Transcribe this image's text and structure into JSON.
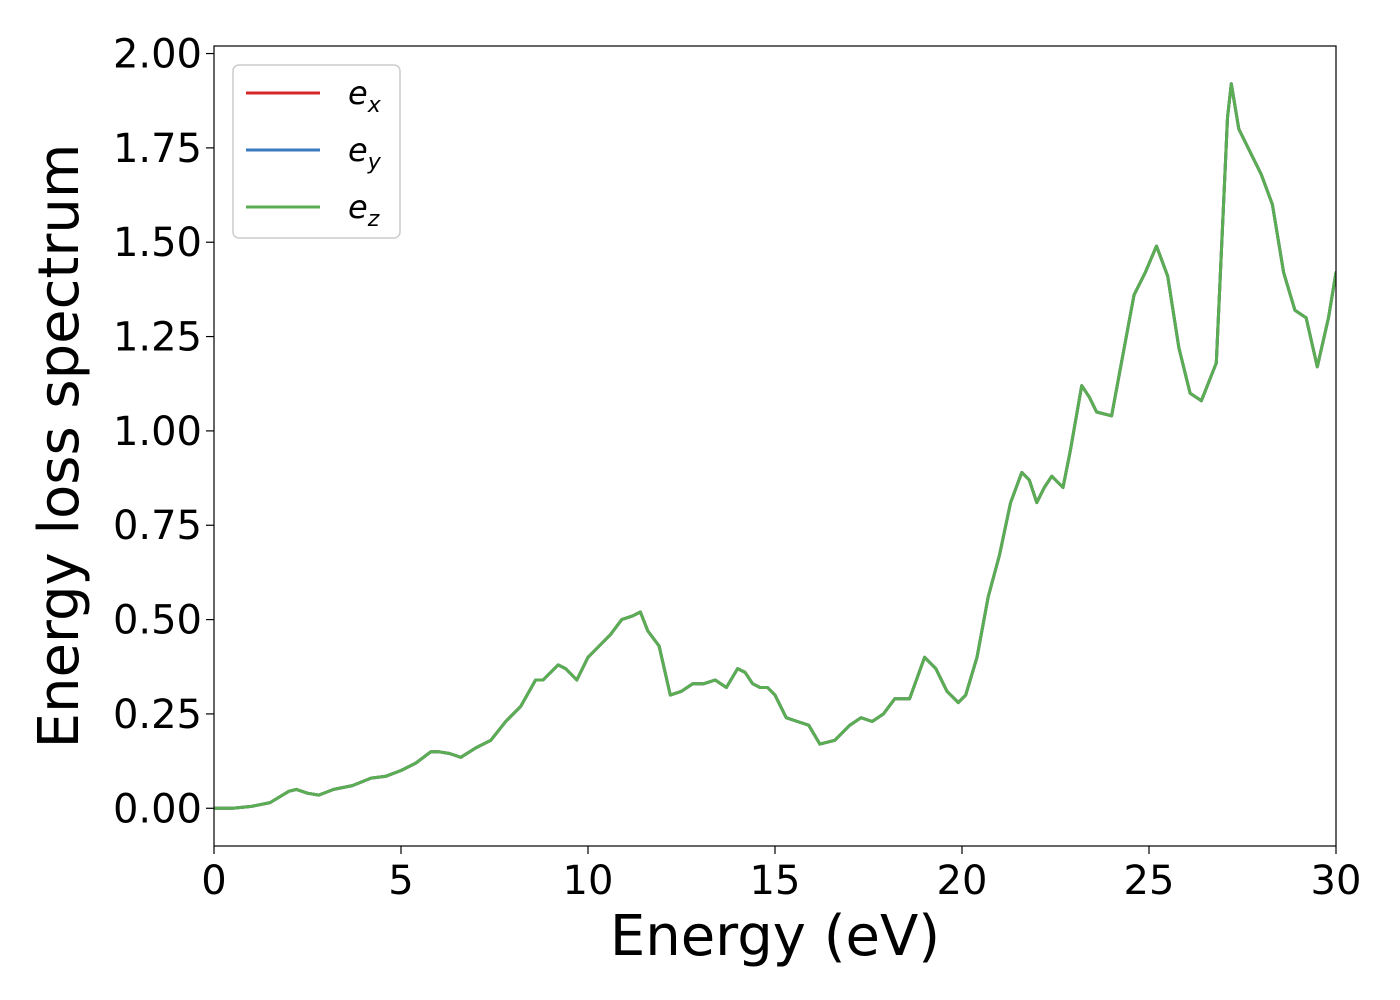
{
  "chart_data": {
    "type": "line",
    "title": "",
    "xlabel": "Energy (eV)",
    "ylabel": "Energy loss spectrum",
    "xlim": [
      0,
      30
    ],
    "ylim": [
      -0.1,
      2.02
    ],
    "xticks": [
      0,
      5,
      10,
      15,
      20,
      25,
      30
    ],
    "xtick_labels": [
      "0",
      "5",
      "10",
      "15",
      "20",
      "25",
      "30"
    ],
    "yticks": [
      0,
      0.25,
      0.5,
      0.75,
      1.0,
      1.25,
      1.5,
      1.75,
      2.0
    ],
    "ytick_labels": [
      "0.00",
      "0.25",
      "0.50",
      "0.75",
      "1.00",
      "1.25",
      "1.50",
      "1.75",
      "2.00"
    ],
    "grid": false,
    "legend_position": "top-left",
    "x": [
      0,
      0.5,
      1.0,
      1.5,
      2.0,
      2.2,
      2.5,
      2.8,
      3.2,
      3.7,
      4.2,
      4.6,
      5.0,
      5.4,
      5.8,
      6.0,
      6.3,
      6.6,
      7.0,
      7.4,
      7.8,
      8.2,
      8.6,
      8.8,
      9.0,
      9.2,
      9.4,
      9.7,
      10.0,
      10.3,
      10.6,
      10.9,
      11.2,
      11.4,
      11.6,
      11.9,
      12.2,
      12.5,
      12.8,
      13.1,
      13.4,
      13.7,
      14.0,
      14.2,
      14.4,
      14.6,
      14.8,
      15.0,
      15.3,
      15.6,
      15.9,
      16.2,
      16.6,
      17.0,
      17.3,
      17.6,
      17.9,
      18.2,
      18.6,
      19.0,
      19.3,
      19.6,
      19.9,
      20.1,
      20.4,
      20.7,
      21.0,
      21.3,
      21.6,
      21.8,
      22.0,
      22.2,
      22.4,
      22.7,
      22.9,
      23.2,
      23.4,
      23.6,
      24.0,
      24.3,
      24.6,
      24.9,
      25.2,
      25.5,
      25.8,
      26.1,
      26.4,
      26.8,
      27.1,
      27.2,
      27.4,
      27.7,
      28.0,
      28.3,
      28.6,
      28.9,
      29.2,
      29.5,
      29.8,
      30.0
    ],
    "series": [
      {
        "name": "e_x",
        "color": "#d62728",
        "values": [
          0.0,
          0.0,
          0.005,
          0.015,
          0.045,
          0.05,
          0.04,
          0.035,
          0.05,
          0.06,
          0.08,
          0.085,
          0.1,
          0.12,
          0.15,
          0.15,
          0.145,
          0.135,
          0.16,
          0.18,
          0.23,
          0.27,
          0.34,
          0.34,
          0.36,
          0.38,
          0.37,
          0.34,
          0.4,
          0.43,
          0.46,
          0.5,
          0.51,
          0.52,
          0.47,
          0.43,
          0.3,
          0.31,
          0.33,
          0.33,
          0.34,
          0.32,
          0.37,
          0.36,
          0.33,
          0.32,
          0.32,
          0.3,
          0.24,
          0.23,
          0.22,
          0.17,
          0.18,
          0.22,
          0.24,
          0.23,
          0.25,
          0.29,
          0.29,
          0.4,
          0.37,
          0.31,
          0.28,
          0.3,
          0.4,
          0.56,
          0.67,
          0.81,
          0.89,
          0.87,
          0.81,
          0.85,
          0.88,
          0.85,
          0.95,
          1.12,
          1.09,
          1.05,
          1.04,
          1.2,
          1.36,
          1.42,
          1.49,
          1.41,
          1.22,
          1.1,
          1.08,
          1.18,
          1.83,
          1.92,
          1.8,
          1.74,
          1.68,
          1.6,
          1.42,
          1.32,
          1.3,
          1.17,
          1.3,
          1.42
        ]
      },
      {
        "name": "e_y",
        "color": "#3a7bc0",
        "values": [
          0.0,
          0.0,
          0.005,
          0.015,
          0.045,
          0.05,
          0.04,
          0.035,
          0.05,
          0.06,
          0.08,
          0.085,
          0.1,
          0.12,
          0.15,
          0.15,
          0.145,
          0.135,
          0.16,
          0.18,
          0.23,
          0.27,
          0.34,
          0.34,
          0.36,
          0.38,
          0.37,
          0.34,
          0.4,
          0.43,
          0.46,
          0.5,
          0.51,
          0.52,
          0.47,
          0.43,
          0.3,
          0.31,
          0.33,
          0.33,
          0.34,
          0.32,
          0.37,
          0.36,
          0.33,
          0.32,
          0.32,
          0.3,
          0.24,
          0.23,
          0.22,
          0.17,
          0.18,
          0.22,
          0.24,
          0.23,
          0.25,
          0.29,
          0.29,
          0.4,
          0.37,
          0.31,
          0.28,
          0.3,
          0.4,
          0.56,
          0.67,
          0.81,
          0.89,
          0.87,
          0.81,
          0.85,
          0.88,
          0.85,
          0.95,
          1.12,
          1.09,
          1.05,
          1.04,
          1.2,
          1.36,
          1.42,
          1.49,
          1.41,
          1.22,
          1.1,
          1.08,
          1.18,
          1.83,
          1.92,
          1.8,
          1.74,
          1.68,
          1.6,
          1.42,
          1.32,
          1.3,
          1.17,
          1.3,
          1.42
        ]
      },
      {
        "name": "e_z",
        "color": "#5aad52",
        "values": [
          0.0,
          0.0,
          0.005,
          0.015,
          0.045,
          0.05,
          0.04,
          0.035,
          0.05,
          0.06,
          0.08,
          0.085,
          0.1,
          0.12,
          0.15,
          0.15,
          0.145,
          0.135,
          0.16,
          0.18,
          0.23,
          0.27,
          0.34,
          0.34,
          0.36,
          0.38,
          0.37,
          0.34,
          0.4,
          0.43,
          0.46,
          0.5,
          0.51,
          0.52,
          0.47,
          0.43,
          0.3,
          0.31,
          0.33,
          0.33,
          0.34,
          0.32,
          0.37,
          0.36,
          0.33,
          0.32,
          0.32,
          0.3,
          0.24,
          0.23,
          0.22,
          0.17,
          0.18,
          0.22,
          0.24,
          0.23,
          0.25,
          0.29,
          0.29,
          0.4,
          0.37,
          0.31,
          0.28,
          0.3,
          0.4,
          0.56,
          0.67,
          0.81,
          0.89,
          0.87,
          0.81,
          0.85,
          0.88,
          0.85,
          0.95,
          1.12,
          1.09,
          1.05,
          1.04,
          1.2,
          1.36,
          1.42,
          1.49,
          1.41,
          1.22,
          1.1,
          1.08,
          1.18,
          1.83,
          1.92,
          1.8,
          1.74,
          1.68,
          1.6,
          1.42,
          1.32,
          1.3,
          1.17,
          1.3,
          1.42
        ]
      }
    ],
    "legend": [
      {
        "base": "e",
        "sub": "x",
        "color": "#d62728"
      },
      {
        "base": "e",
        "sub": "y",
        "color": "#3a7bc0"
      },
      {
        "base": "e",
        "sub": "z",
        "color": "#5aad52"
      }
    ]
  }
}
